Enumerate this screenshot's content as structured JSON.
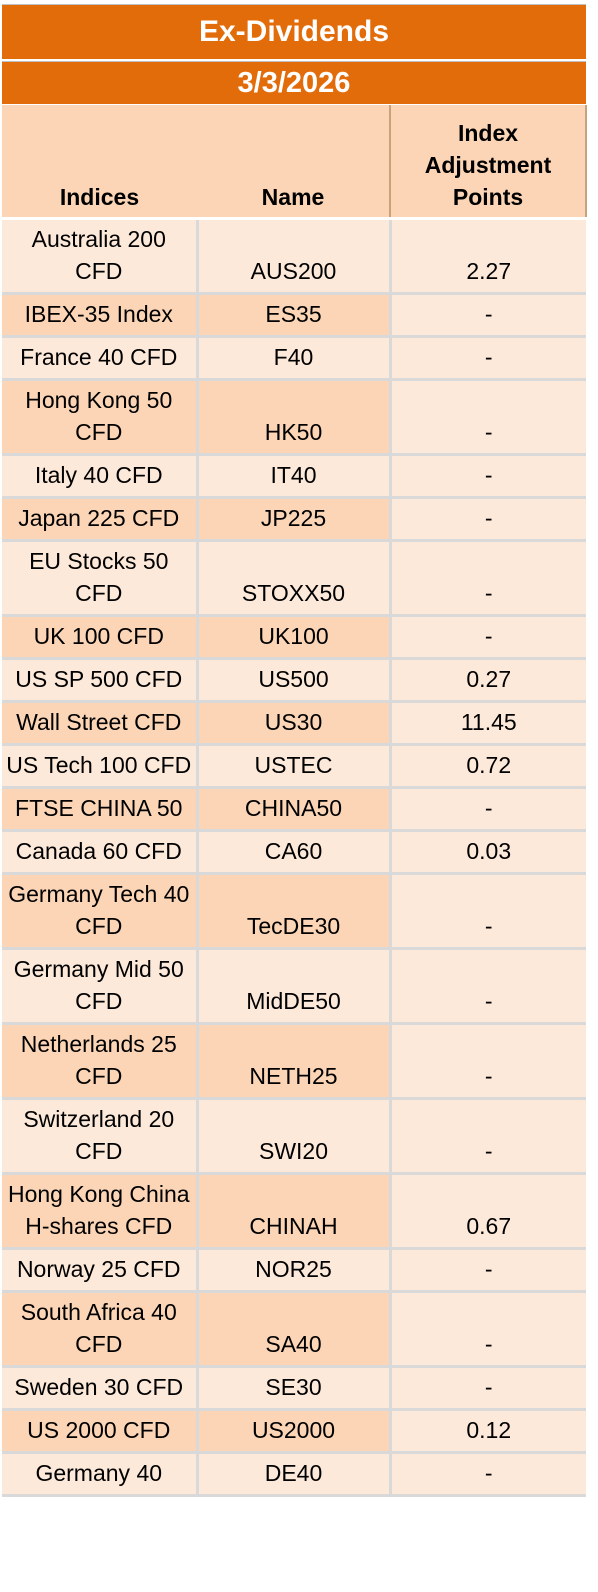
{
  "title": "Ex-Dividends",
  "date": "3/3/2026",
  "headers": {
    "indices": "Indices",
    "name": "Name",
    "points": "Index Adjustment Points"
  },
  "rows": [
    {
      "index": "Australia 200 CFD",
      "name": "AUS200",
      "points": "2.27"
    },
    {
      "index": "IBEX-35 Index",
      "name": "ES35",
      "points": "-"
    },
    {
      "index": "France 40 CFD",
      "name": "F40",
      "points": "-"
    },
    {
      "index": "Hong Kong 50 CFD",
      "name": "HK50",
      "points": "-"
    },
    {
      "index": "Italy 40 CFD",
      "name": "IT40",
      "points": "-"
    },
    {
      "index": "Japan 225 CFD",
      "name": "JP225",
      "points": "-"
    },
    {
      "index": "EU Stocks 50 CFD",
      "name": "STOXX50",
      "points": "-"
    },
    {
      "index": "UK 100 CFD",
      "name": "UK100",
      "points": "-"
    },
    {
      "index": "US SP 500 CFD",
      "name": "US500",
      "points": "0.27"
    },
    {
      "index": "Wall Street CFD",
      "name": "US30",
      "points": "11.45"
    },
    {
      "index": "US Tech 100 CFD",
      "name": "USTEC",
      "points": "0.72"
    },
    {
      "index": "FTSE CHINA 50",
      "name": "CHINA50",
      "points": "-"
    },
    {
      "index": "Canada 60 CFD",
      "name": "CA60",
      "points": "0.03"
    },
    {
      "index": "Germany Tech 40 CFD",
      "name": "TecDE30",
      "points": "-"
    },
    {
      "index": "Germany Mid 50 CFD",
      "name": "MidDE50",
      "points": "-"
    },
    {
      "index": "Netherlands 25 CFD",
      "name": "NETH25",
      "points": "-"
    },
    {
      "index": "Switzerland 20 CFD",
      "name": "SWI20",
      "points": "-"
    },
    {
      "index": "Hong Kong China H-shares CFD",
      "name": "CHINAH",
      "points": "0.67"
    },
    {
      "index": "Norway 25 CFD",
      "name": "NOR25",
      "points": "-"
    },
    {
      "index": "South Africa 40 CFD",
      "name": "SA40",
      "points": "-"
    },
    {
      "index": "Sweden 30 CFD",
      "name": "SE30",
      "points": "-"
    },
    {
      "index": "US 2000 CFD",
      "name": "US2000",
      "points": "0.12"
    },
    {
      "index": "Germany 40",
      "name": "DE40",
      "points": "-"
    }
  ]
}
